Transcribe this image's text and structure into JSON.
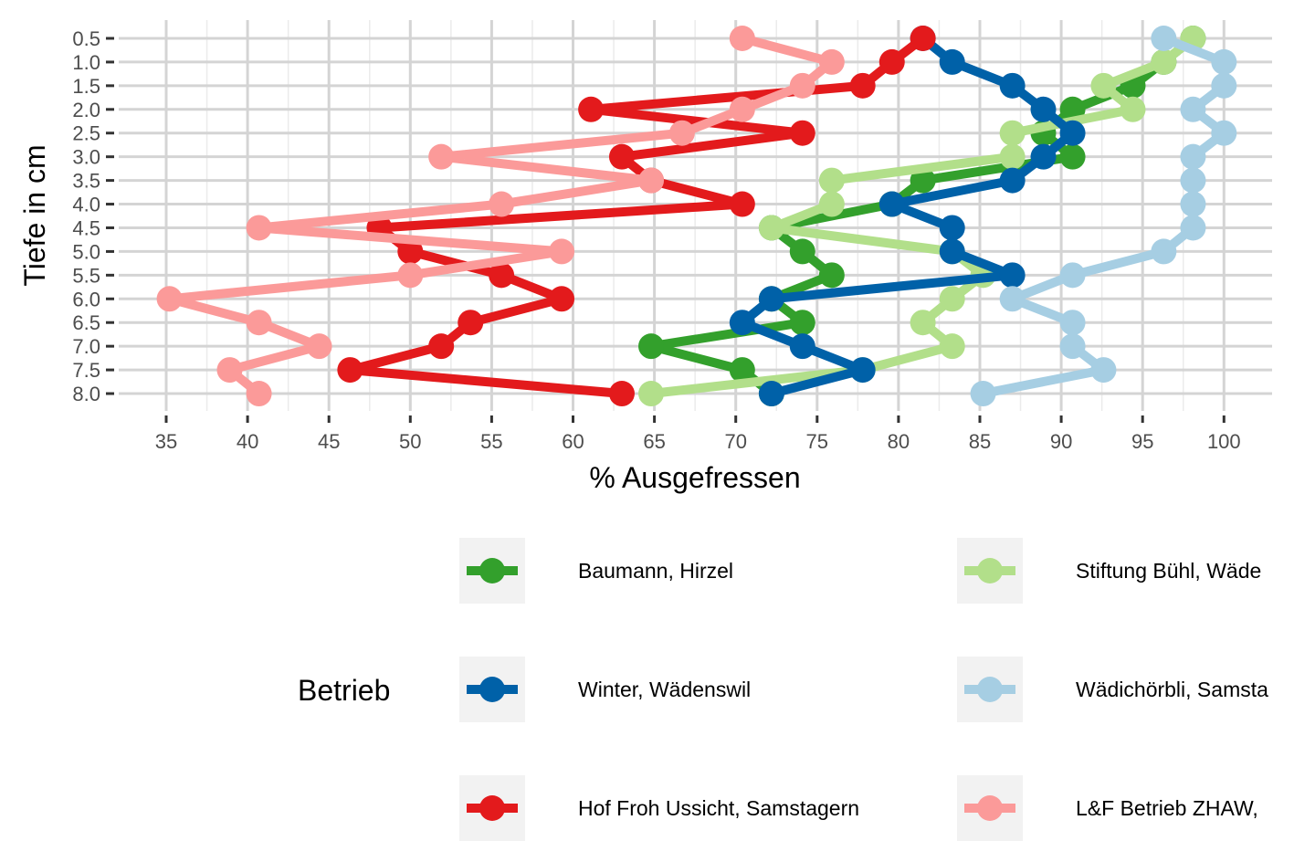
{
  "chart_data": {
    "type": "line",
    "xlabel": "% Ausgefressen",
    "ylabel": "Tiefe in cm",
    "xlim": [
      33,
      101.5
    ],
    "ylim": [
      0.5,
      8.0
    ],
    "y_reversed": true,
    "x_ticks": [
      35,
      40,
      45,
      50,
      55,
      60,
      65,
      70,
      75,
      80,
      85,
      90,
      95,
      100
    ],
    "x_tick_labels": [
      "35",
      "40",
      "45",
      "50",
      "55",
      "60",
      "65",
      "70",
      "75",
      "80",
      "85",
      "90",
      "95",
      "100"
    ],
    "y_ticks": [
      0.5,
      1.0,
      1.5,
      2.0,
      2.5,
      3.0,
      3.5,
      4.0,
      4.5,
      5.0,
      5.5,
      6.0,
      6.5,
      7.0,
      7.5,
      8.0
    ],
    "y_tick_labels": [
      "0.5",
      "1.0",
      "1.5",
      "2.0",
      "2.5",
      "3.0",
      "3.5",
      "4.0",
      "4.5",
      "5.0",
      "5.5",
      "6.0",
      "6.5",
      "7.0",
      "7.5",
      "8.0"
    ],
    "grid": true,
    "legend_title": "Betrieb",
    "legend_position": "bottom",
    "series": [
      {
        "name": "Baumann, Hirzel",
        "color": "#33a02c",
        "points": [
          [
            98.1,
            0.5
          ],
          [
            96.3,
            1.0
          ],
          [
            94.4,
            1.5
          ],
          [
            90.7,
            2.0
          ],
          [
            88.9,
            2.5
          ],
          [
            90.7,
            3.0
          ],
          [
            81.5,
            3.5
          ],
          [
            79.6,
            4.0
          ],
          [
            72.2,
            4.5
          ],
          [
            74.1,
            5.0
          ],
          [
            75.9,
            5.5
          ],
          [
            72.2,
            6.0
          ],
          [
            74.1,
            6.5
          ],
          [
            64.8,
            7.0
          ],
          [
            70.4,
            7.5
          ],
          [
            72.2,
            8.0
          ]
        ]
      },
      {
        "name": "Stiftung Bühl, Wäde",
        "color": "#b2df8a",
        "points": [
          [
            98.1,
            0.5
          ],
          [
            96.3,
            1.0
          ],
          [
            92.6,
            1.5
          ],
          [
            94.4,
            2.0
          ],
          [
            87.0,
            2.5
          ],
          [
            87.0,
            3.0
          ],
          [
            75.9,
            3.5
          ],
          [
            75.9,
            4.0
          ],
          [
            72.2,
            4.5
          ],
          [
            83.3,
            5.0
          ],
          [
            85.2,
            5.5
          ],
          [
            83.3,
            6.0
          ],
          [
            81.5,
            6.5
          ],
          [
            83.3,
            7.0
          ],
          [
            77.8,
            7.5
          ],
          [
            64.8,
            8.0
          ]
        ]
      },
      {
        "name": "Winter, Wädenswil",
        "color": "#0061a8",
        "points": [
          [
            81.5,
            0.5
          ],
          [
            83.3,
            1.0
          ],
          [
            87.0,
            1.5
          ],
          [
            88.9,
            2.0
          ],
          [
            90.7,
            2.5
          ],
          [
            88.9,
            3.0
          ],
          [
            87.0,
            3.5
          ],
          [
            79.6,
            4.0
          ],
          [
            83.3,
            4.5
          ],
          [
            83.3,
            5.0
          ],
          [
            87.0,
            5.5
          ],
          [
            72.2,
            6.0
          ],
          [
            70.4,
            6.5
          ],
          [
            74.1,
            7.0
          ],
          [
            77.8,
            7.5
          ],
          [
            72.2,
            8.0
          ]
        ]
      },
      {
        "name": "Wädichörbli, Samsta",
        "color": "#a6cee3",
        "points": [
          [
            96.3,
            0.5
          ],
          [
            100.0,
            1.0
          ],
          [
            100.0,
            1.5
          ],
          [
            98.1,
            2.0
          ],
          [
            100.0,
            2.5
          ],
          [
            98.1,
            3.0
          ],
          [
            98.1,
            3.5
          ],
          [
            98.1,
            4.0
          ],
          [
            98.1,
            4.5
          ],
          [
            96.3,
            5.0
          ],
          [
            90.7,
            5.5
          ],
          [
            87.0,
            6.0
          ],
          [
            90.7,
            6.5
          ],
          [
            90.7,
            7.0
          ],
          [
            92.6,
            7.5
          ],
          [
            85.2,
            8.0
          ]
        ]
      },
      {
        "name": "Hof Froh Ussicht, Samstagern",
        "color": "#e31a1c",
        "points": [
          [
            81.5,
            0.5
          ],
          [
            79.6,
            1.0
          ],
          [
            77.8,
            1.5
          ],
          [
            61.1,
            2.0
          ],
          [
            74.1,
            2.5
          ],
          [
            63.0,
            3.0
          ],
          [
            64.8,
            3.5
          ],
          [
            70.4,
            4.0
          ],
          [
            48.1,
            4.5
          ],
          [
            50.0,
            5.0
          ],
          [
            55.6,
            5.5
          ],
          [
            59.3,
            6.0
          ],
          [
            53.7,
            6.5
          ],
          [
            51.9,
            7.0
          ],
          [
            46.3,
            7.5
          ],
          [
            63.0,
            8.0
          ]
        ]
      },
      {
        "name": "L&F Betrieb ZHAW,",
        "color": "#fb9a99",
        "points": [
          [
            70.4,
            0.5
          ],
          [
            75.9,
            1.0
          ],
          [
            74.1,
            1.5
          ],
          [
            70.4,
            2.0
          ],
          [
            66.7,
            2.5
          ],
          [
            51.9,
            3.0
          ],
          [
            64.8,
            3.5
          ],
          [
            55.6,
            4.0
          ],
          [
            40.7,
            4.5
          ],
          [
            59.3,
            5.0
          ],
          [
            50.0,
            5.5
          ],
          [
            35.2,
            6.0
          ],
          [
            40.7,
            6.5
          ],
          [
            44.4,
            7.0
          ],
          [
            38.9,
            7.5
          ],
          [
            40.7,
            8.0
          ]
        ]
      }
    ]
  }
}
